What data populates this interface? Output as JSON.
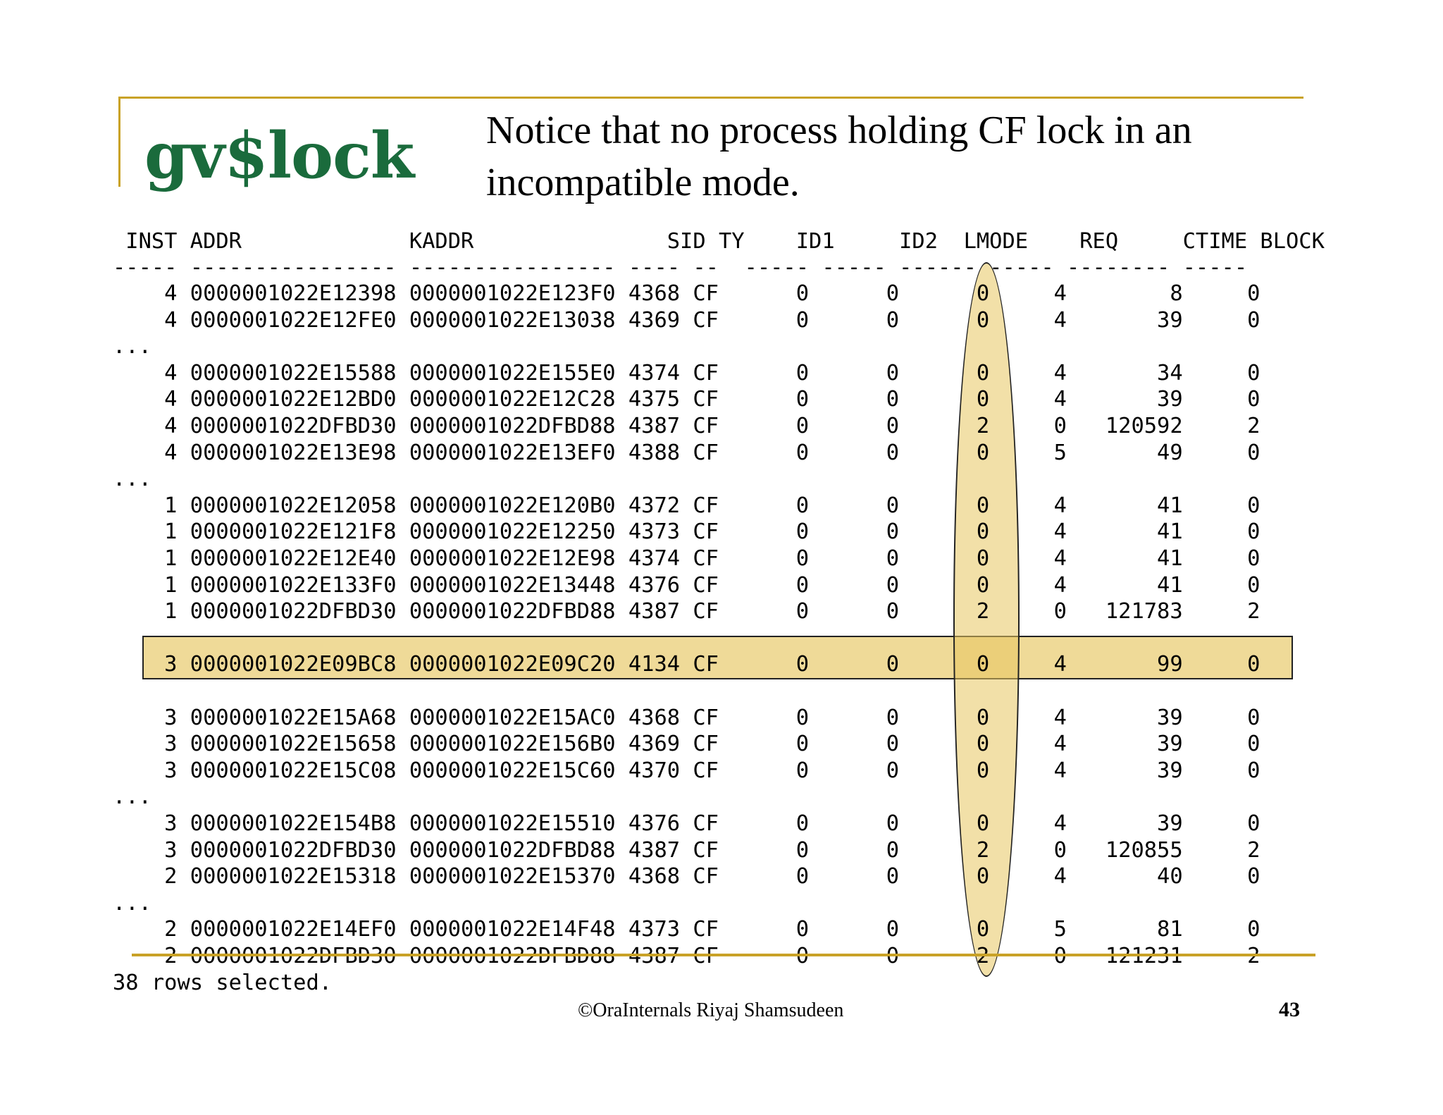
{
  "slide": {
    "title": "gv$lock",
    "subtitle": "Notice that no process holding CF lock in an incompatible mode.",
    "footer": "©OraInternals  Riyaj Shamsudeen",
    "page_number": "43"
  },
  "accent_colors": {
    "frame": "#c9a227",
    "title": "#1a6b3c",
    "highlight_fill": "#eacd76"
  },
  "console": {
    "header": " INST ADDR             KADDR               SID TY    ID1     ID2  LMODE    REQ     CTIME BLOCK",
    "separator": "----- ---------------- ---------------- ---- --  ----- ----- ------ ----- -------- -----",
    "rows": [
      "    4 0000001022E12398 0000001022E123F0 4368 CF      0      0      0     4        8     0",
      "    4 0000001022E12FE0 0000001022E13038 4369 CF      0      0      0     4       39     0",
      "...",
      "    4 0000001022E15588 0000001022E155E0 4374 CF      0      0      0     4       34     0",
      "    4 0000001022E12BD0 0000001022E12C28 4375 CF      0      0      0     4       39     0",
      "    4 0000001022DFBD30 0000001022DFBD88 4387 CF      0      0      2     0   120592     2",
      "    4 0000001022E13E98 0000001022E13EF0 4388 CF      0      0      0     5       49     0",
      "...",
      "    1 0000001022E12058 0000001022E120B0 4372 CF      0      0      0     4       41     0",
      "    1 0000001022E121F8 0000001022E12250 4373 CF      0      0      0     4       41     0",
      "    1 0000001022E12E40 0000001022E12E98 4374 CF      0      0      0     4       41     0",
      "    1 0000001022E133F0 0000001022E13448 4376 CF      0      0      0     4       41     0",
      "    1 0000001022DFBD30 0000001022DFBD88 4387 CF      0      0      2     0   121783     2",
      "",
      "    3 0000001022E09BC8 0000001022E09C20 4134 CF      0      0      0     4       99     0",
      "",
      "    3 0000001022E15A68 0000001022E15AC0 4368 CF      0      0      0     4       39     0",
      "    3 0000001022E15658 0000001022E156B0 4369 CF      0      0      0     4       39     0",
      "    3 0000001022E15C08 0000001022E15C60 4370 CF      0      0      0     4       39     0",
      "...",
      "    3 0000001022E154B8 0000001022E15510 4376 CF      0      0      0     4       39     0",
      "    3 0000001022DFBD30 0000001022DFBD88 4387 CF      0      0      2     0   120855     2",
      "    2 0000001022E15318 0000001022E15370 4368 CF      0      0      0     4       40     0",
      "...",
      "    2 0000001022E14EF0 0000001022E14F48 4373 CF      0      0      0     5       81     0",
      "    2 0000001022DFBD30 0000001022DFBD88 4387 CF      0      0      2     0   121231     2",
      "38 rows selected."
    ]
  }
}
